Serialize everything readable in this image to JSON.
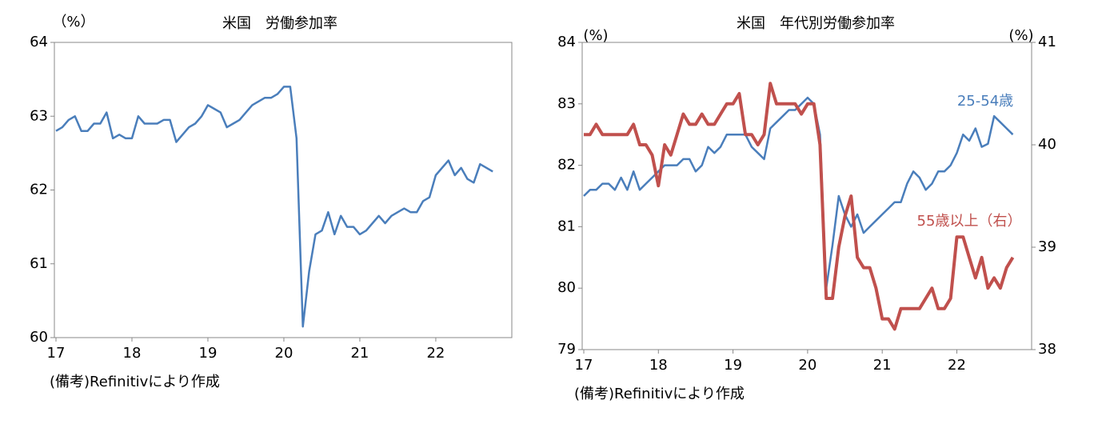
{
  "chart_data": [
    {
      "type": "line",
      "title": "米国　労働参加率",
      "y_unit_label": "（%）",
      "note": "(備考)Refinitivにより作成",
      "categories": [
        "17",
        null,
        null,
        null,
        null,
        null,
        null,
        null,
        null,
        null,
        null,
        null,
        "18",
        null,
        null,
        null,
        null,
        null,
        null,
        null,
        null,
        null,
        null,
        null,
        "19",
        null,
        null,
        null,
        null,
        null,
        null,
        null,
        null,
        null,
        null,
        null,
        "20",
        null,
        null,
        null,
        null,
        null,
        null,
        null,
        null,
        null,
        null,
        null,
        "21",
        null,
        null,
        null,
        null,
        null,
        null,
        null,
        null,
        null,
        null,
        null,
        "22",
        null,
        null,
        null,
        null,
        null,
        null,
        null,
        null,
        null
      ],
      "series": [
        {
          "name": "労働参加率",
          "color": "#4a7ebb",
          "values": [
            62.8,
            62.85,
            62.95,
            63.0,
            62.8,
            62.8,
            62.9,
            62.9,
            63.05,
            62.7,
            62.75,
            62.7,
            62.7,
            63.0,
            62.9,
            62.9,
            62.9,
            62.95,
            62.95,
            62.65,
            62.75,
            62.85,
            62.9,
            63.0,
            63.15,
            63.1,
            63.05,
            62.85,
            62.9,
            62.95,
            63.05,
            63.15,
            63.2,
            63.25,
            63.25,
            63.3,
            63.4,
            63.4,
            62.7,
            60.15,
            60.9,
            61.4,
            61.45,
            61.7,
            61.4,
            61.65,
            61.5,
            61.5,
            61.4,
            61.45,
            61.55,
            61.65,
            61.55,
            61.65,
            61.7,
            61.75,
            61.7,
            61.7,
            61.85,
            61.9,
            62.2,
            62.3,
            62.4,
            62.2,
            62.3,
            62.15,
            62.1,
            62.35,
            62.3,
            62.25
          ]
        }
      ],
      "ylim": [
        60,
        64
      ],
      "yticks": [
        60,
        61,
        62,
        63,
        64
      ]
    },
    {
      "type": "line",
      "title": "米国　年代別労働参加率",
      "y_unit_label": "(%)",
      "y2_unit_label": "(%)",
      "note": "(備考)Refinitivにより作成",
      "categories": [
        "17",
        null,
        null,
        null,
        null,
        null,
        null,
        null,
        null,
        null,
        null,
        null,
        "18",
        null,
        null,
        null,
        null,
        null,
        null,
        null,
        null,
        null,
        null,
        null,
        "19",
        null,
        null,
        null,
        null,
        null,
        null,
        null,
        null,
        null,
        null,
        null,
        "20",
        null,
        null,
        null,
        null,
        null,
        null,
        null,
        null,
        null,
        null,
        null,
        "21",
        null,
        null,
        null,
        null,
        null,
        null,
        null,
        null,
        null,
        null,
        null,
        "22",
        null,
        null,
        null,
        null,
        null,
        null,
        null,
        null,
        null
      ],
      "series": [
        {
          "name": "25-54歳",
          "color": "#4a7ebb",
          "values": [
            81.5,
            81.6,
            81.6,
            81.7,
            81.7,
            81.6,
            81.8,
            81.6,
            81.9,
            81.6,
            81.7,
            81.8,
            81.9,
            82.0,
            82.0,
            82.0,
            82.1,
            82.1,
            81.9,
            82.0,
            82.3,
            82.2,
            82.3,
            82.5,
            82.5,
            82.5,
            82.5,
            82.3,
            82.2,
            82.1,
            82.6,
            82.7,
            82.8,
            82.9,
            82.9,
            83.0,
            83.1,
            83.0,
            82.5,
            80.0,
            80.7,
            81.5,
            81.2,
            81.0,
            81.2,
            80.9,
            81.0,
            81.1,
            81.2,
            81.3,
            81.4,
            81.4,
            81.7,
            81.9,
            81.8,
            81.6,
            81.7,
            81.9,
            81.9,
            82.0,
            82.2,
            82.5,
            82.4,
            82.6,
            82.3,
            82.35,
            82.8,
            82.7,
            82.6,
            82.5
          ]
        },
        {
          "name": "55歳以上（右）",
          "color": "#c0504d",
          "axis": "y2",
          "values": [
            40.1,
            40.1,
            40.2,
            40.1,
            40.1,
            40.1,
            40.1,
            40.1,
            40.2,
            40.0,
            40.0,
            39.9,
            39.6,
            40.0,
            39.9,
            40.1,
            40.3,
            40.2,
            40.2,
            40.3,
            40.2,
            40.2,
            40.3,
            40.4,
            40.4,
            40.5,
            40.1,
            40.1,
            40.0,
            40.1,
            40.6,
            40.4,
            40.4,
            40.4,
            40.4,
            40.3,
            40.4,
            40.4,
            40.0,
            38.5,
            38.5,
            39.0,
            39.3,
            39.5,
            38.9,
            38.8,
            38.8,
            38.6,
            38.3,
            38.3,
            38.2,
            38.4,
            38.4,
            38.4,
            38.4,
            38.5,
            38.6,
            38.4,
            38.4,
            38.5,
            39.1,
            39.1,
            38.9,
            38.7,
            38.9,
            38.6,
            38.7,
            38.6,
            38.8,
            38.9
          ]
        }
      ],
      "ylim": [
        79,
        84
      ],
      "yticks": [
        79,
        80,
        81,
        82,
        83,
        84
      ],
      "y2lim": [
        38,
        41
      ],
      "y2ticks": [
        38,
        39,
        40,
        41
      ]
    }
  ]
}
